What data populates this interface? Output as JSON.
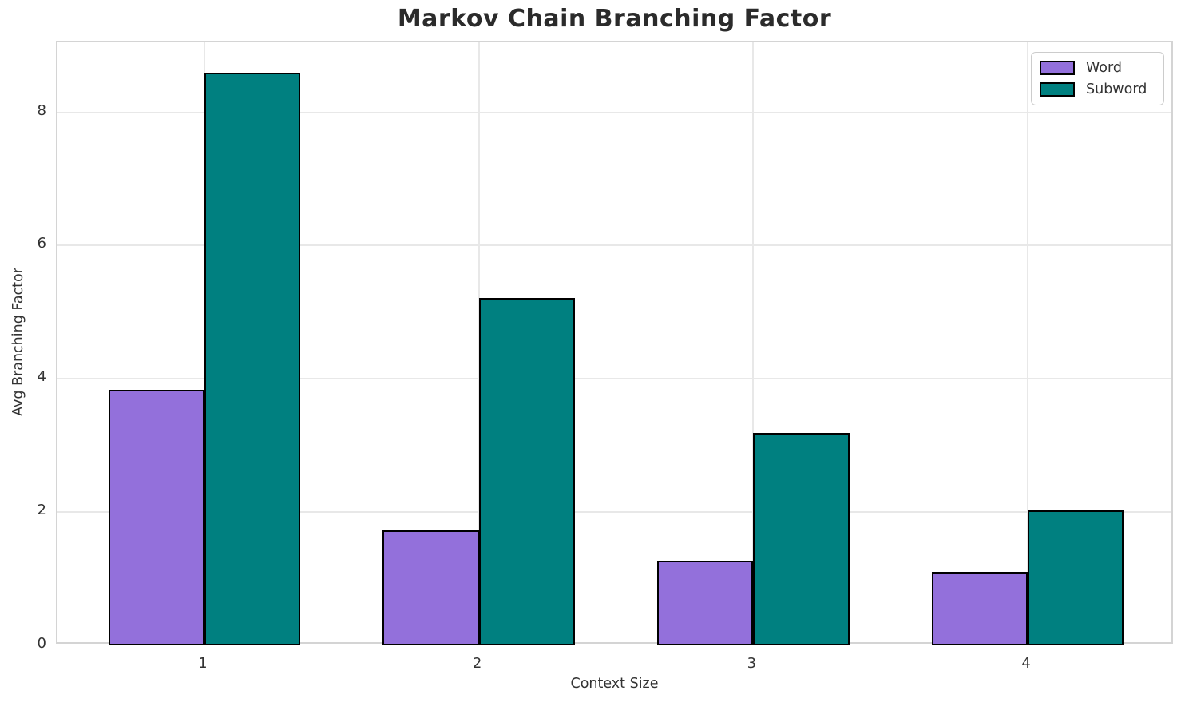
{
  "chart_data": {
    "type": "bar",
    "title": "Markov Chain Branching Factor",
    "xlabel": "Context Size",
    "ylabel": "Avg Branching Factor",
    "categories": [
      "1",
      "2",
      "3",
      "4"
    ],
    "x": [
      1,
      2,
      3,
      4
    ],
    "series": [
      {
        "name": "Word",
        "color": "#9370DB",
        "values": [
          3.83,
          1.73,
          1.27,
          1.1
        ]
      },
      {
        "name": "Subword",
        "color": "#008080",
        "values": [
          8.6,
          5.22,
          3.19,
          2.02
        ]
      }
    ],
    "bar_width_units": 0.35,
    "bar_edge_color": "#000000",
    "xlim": [
      0.465,
      4.535
    ],
    "ylim": [
      0,
      9.05
    ],
    "yticks": [
      0,
      2,
      4,
      6,
      8
    ],
    "grid": true,
    "legend_position": "upper right"
  },
  "colors": {
    "title": "#2b2b2b",
    "tick_label": "#333333",
    "grid": "#e8e8e8",
    "frame": "#d4d4d4",
    "legend_border": "#cccccc",
    "background": "#ffffff"
  }
}
